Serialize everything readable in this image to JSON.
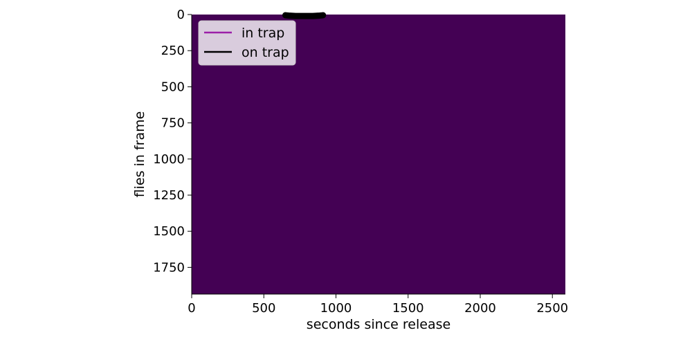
{
  "chart_data": {
    "type": "heatmap",
    "title": "",
    "xlabel": "seconds since release",
    "ylabel": "flies in frame",
    "xlim": [
      0,
      2590
    ],
    "ylim": [
      1935,
      0
    ],
    "x_ticks": [
      0,
      500,
      1000,
      1500,
      2000,
      2500
    ],
    "y_ticks": [
      0,
      250,
      500,
      750,
      1000,
      1250,
      1500,
      1750
    ],
    "background_fill": "#440154",
    "grid": false,
    "legend": {
      "placement": "top-left",
      "entries": [
        {
          "label": "in trap",
          "color": "#9b1fa8"
        },
        {
          "label": "on trap",
          "color": "#000000"
        }
      ]
    },
    "series": [
      {
        "name": "in trap",
        "color": "#9b1fa8",
        "x": [],
        "y": []
      },
      {
        "name": "on trap",
        "color": "#000000",
        "x": [
          650,
          680,
          720,
          780,
          840,
          880,
          910
        ],
        "y": [
          5,
          8,
          10,
          10,
          10,
          8,
          5
        ]
      }
    ]
  }
}
